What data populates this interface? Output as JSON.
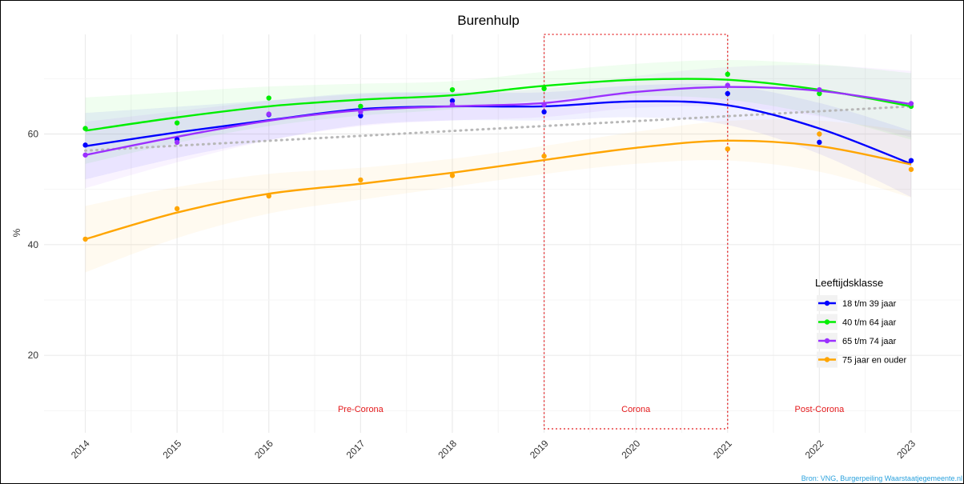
{
  "chart_data": {
    "type": "line",
    "title": "Burenhulp",
    "ylabel": "%",
    "xlabel": "",
    "x": [
      2014,
      2015,
      2016,
      2017,
      2018,
      2019,
      2020,
      2021,
      2022,
      2023
    ],
    "x_tick_labels": [
      "2014",
      "2015",
      "2016",
      "2017",
      "2018",
      "2019",
      "2020",
      "2021",
      "2022",
      "2023"
    ],
    "y_ticks": [
      20,
      40,
      60
    ],
    "ylim": [
      6,
      78
    ],
    "grid": true,
    "legend": {
      "title": "Leeftijdsklasse",
      "placement": "right"
    },
    "series": [
      {
        "name": "18 t/m 39 jaar",
        "color": "#0000ff",
        "points": [
          {
            "x": 2014,
            "y": 58.0
          },
          {
            "x": 2015,
            "y": 59.0
          },
          {
            "x": 2016,
            "y": 63.5
          },
          {
            "x": 2017,
            "y": 63.3
          },
          {
            "x": 2018,
            "y": 66.0
          },
          {
            "x": 2019,
            "y": 64.0
          },
          {
            "x": 2021,
            "y": 67.3
          },
          {
            "x": 2022,
            "y": 58.5
          },
          {
            "x": 2023,
            "y": 55.2
          }
        ],
        "trend": [
          {
            "x": 2014,
            "y": 57.8
          },
          {
            "x": 2015,
            "y": 60.3
          },
          {
            "x": 2016,
            "y": 62.5
          },
          {
            "x": 2017,
            "y": 64.5
          },
          {
            "x": 2018,
            "y": 65.0
          },
          {
            "x": 2019,
            "y": 65.0
          },
          {
            "x": 2020,
            "y": 65.9
          },
          {
            "x": 2021,
            "y": 65.2
          },
          {
            "x": 2022,
            "y": 61.0
          },
          {
            "x": 2023,
            "y": 54.6
          }
        ]
      },
      {
        "name": "40 t/m 64 jaar",
        "color": "#00ee00",
        "points": [
          {
            "x": 2014,
            "y": 61.0
          },
          {
            "x": 2015,
            "y": 62.0
          },
          {
            "x": 2016,
            "y": 66.5
          },
          {
            "x": 2017,
            "y": 65.0
          },
          {
            "x": 2018,
            "y": 68.0
          },
          {
            "x": 2019,
            "y": 68.2
          },
          {
            "x": 2021,
            "y": 70.8
          },
          {
            "x": 2022,
            "y": 67.3
          },
          {
            "x": 2023,
            "y": 65.0
          }
        ],
        "trend": [
          {
            "x": 2014,
            "y": 60.6
          },
          {
            "x": 2015,
            "y": 63.0
          },
          {
            "x": 2016,
            "y": 65.0
          },
          {
            "x": 2017,
            "y": 66.2
          },
          {
            "x": 2018,
            "y": 67.0
          },
          {
            "x": 2019,
            "y": 68.7
          },
          {
            "x": 2020,
            "y": 69.8
          },
          {
            "x": 2021,
            "y": 69.8
          },
          {
            "x": 2022,
            "y": 68.0
          },
          {
            "x": 2023,
            "y": 65.0
          }
        ]
      },
      {
        "name": "65 t/m 74 jaar",
        "color": "#9b30ff",
        "points": [
          {
            "x": 2014,
            "y": 56.2
          },
          {
            "x": 2015,
            "y": 58.5
          },
          {
            "x": 2016,
            "y": 63.6
          },
          {
            "x": 2017,
            "y": 64.0
          },
          {
            "x": 2018,
            "y": 65.3
          },
          {
            "x": 2019,
            "y": 65.3
          },
          {
            "x": 2021,
            "y": 68.8
          },
          {
            "x": 2022,
            "y": 68.0
          },
          {
            "x": 2023,
            "y": 65.5
          }
        ],
        "trend": [
          {
            "x": 2014,
            "y": 56.2
          },
          {
            "x": 2015,
            "y": 59.5
          },
          {
            "x": 2016,
            "y": 62.4
          },
          {
            "x": 2017,
            "y": 64.3
          },
          {
            "x": 2018,
            "y": 65.0
          },
          {
            "x": 2019,
            "y": 65.6
          },
          {
            "x": 2020,
            "y": 67.6
          },
          {
            "x": 2021,
            "y": 68.5
          },
          {
            "x": 2022,
            "y": 67.8
          },
          {
            "x": 2023,
            "y": 65.4
          }
        ]
      },
      {
        "name": "75 jaar en ouder",
        "color": "#ffa500",
        "points": [
          {
            "x": 2014,
            "y": 41.0
          },
          {
            "x": 2015,
            "y": 46.5
          },
          {
            "x": 2016,
            "y": 48.8
          },
          {
            "x": 2017,
            "y": 51.7
          },
          {
            "x": 2018,
            "y": 52.5
          },
          {
            "x": 2019,
            "y": 56.0
          },
          {
            "x": 2021,
            "y": 57.3
          },
          {
            "x": 2022,
            "y": 60.0
          },
          {
            "x": 2023,
            "y": 53.6
          }
        ],
        "trend": [
          {
            "x": 2014,
            "y": 41.0
          },
          {
            "x": 2015,
            "y": 45.8
          },
          {
            "x": 2016,
            "y": 49.2
          },
          {
            "x": 2017,
            "y": 51.0
          },
          {
            "x": 2018,
            "y": 53.0
          },
          {
            "x": 2019,
            "y": 55.3
          },
          {
            "x": 2020,
            "y": 57.5
          },
          {
            "x": 2021,
            "y": 58.8
          },
          {
            "x": 2022,
            "y": 57.8
          },
          {
            "x": 2023,
            "y": 54.5
          }
        ]
      }
    ],
    "overall_trend": {
      "style": "dotted",
      "color": "#b8b8b8",
      "from": {
        "x": 2014,
        "y": 57.0
      },
      "to": {
        "x": 2023,
        "y": 65.0
      }
    },
    "corona_box": {
      "x_start": 2019,
      "x_end": 2021,
      "color": "#e41a1c"
    },
    "period_labels": [
      {
        "text": "Pre-Corona",
        "x": 2017
      },
      {
        "text": "Corona",
        "x": 2020
      },
      {
        "text": "Post-Corona",
        "x": 2022
      }
    ],
    "source": "Bron: VNG, Burgerpeiling Waarstaatjegemeente.nl"
  }
}
